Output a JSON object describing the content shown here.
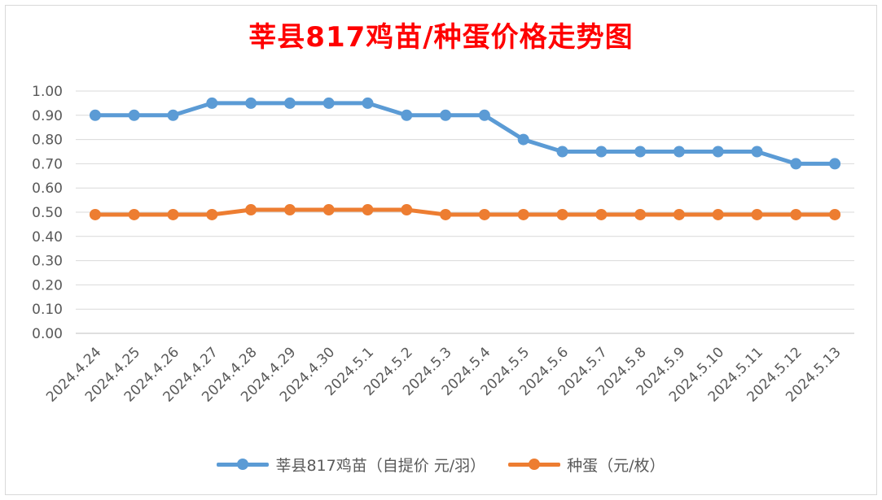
{
  "chart_data": {
    "type": "line",
    "title": "莘县817鸡苗/种蛋价格走势图",
    "categories": [
      "2024.4.24",
      "2024.4.25",
      "2024.4.26",
      "2024.4.27",
      "2024.4.28",
      "2024.4.29",
      "2024.4.30",
      "2024.5.1",
      "2024.5.2",
      "2024.5.3",
      "2024.5.4",
      "2024.5.5",
      "2024.5.6",
      "2024.5.7",
      "2024.5.8",
      "2024.5.9",
      "2024.5.10",
      "2024.5.11",
      "2024.5.12",
      "2024.5.13"
    ],
    "ylim": [
      0,
      1.0
    ],
    "yticks": [
      "0.00",
      "0.10",
      "0.20",
      "0.30",
      "0.40",
      "0.50",
      "0.60",
      "0.70",
      "0.80",
      "0.90",
      "1.00"
    ],
    "grid": true,
    "legend_position": "bottom",
    "series": [
      {
        "name": "莘县817鸡苗（自提价 元/羽）",
        "color": "#5b9bd5",
        "values": [
          0.9,
          0.9,
          0.9,
          0.95,
          0.95,
          0.95,
          0.95,
          0.95,
          0.9,
          0.9,
          0.9,
          0.8,
          0.75,
          0.75,
          0.75,
          0.75,
          0.75,
          0.75,
          0.7,
          0.7
        ]
      },
      {
        "name": "种蛋（元/枚）",
        "color": "#ed7d31",
        "values": [
          0.49,
          0.49,
          0.49,
          0.49,
          0.51,
          0.51,
          0.51,
          0.51,
          0.51,
          0.49,
          0.49,
          0.49,
          0.49,
          0.49,
          0.49,
          0.49,
          0.49,
          0.49,
          0.49,
          0.49
        ]
      }
    ]
  }
}
